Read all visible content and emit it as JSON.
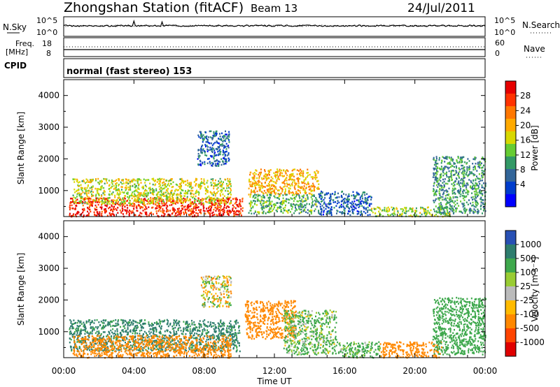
{
  "header": {
    "title": "Zhongshan Station (fitACF)",
    "beam": "Beam 13",
    "date": "24/Jul/2011"
  },
  "params_panel": {
    "nsky_label": "N.Sky",
    "nsky_ticks": [
      "10^5",
      "10^0"
    ],
    "nsearch_label": "N.Search",
    "nsearch_ticks": [
      "10^5",
      "10^0"
    ],
    "freq_label_1": "Freq.",
    "freq_label_2": "[MHz]",
    "freq_ticks": [
      "18",
      "8"
    ],
    "nave_label": "Nave",
    "nave_ticks": [
      "60",
      "0"
    ],
    "cpid_label": "CPID",
    "cpid_text": "normal (fast stereo) 153"
  },
  "power_panel": {
    "ylabel": "Slant Range [km]",
    "yticks": [
      "4000",
      "3000",
      "2000",
      "1000"
    ],
    "colorbar_label": "Power [dB]",
    "colorbar_ticks": [
      "28",
      "24",
      "20",
      "16",
      "12",
      "8",
      "4"
    ],
    "colorbar_colors": [
      "#e60000",
      "#ff3300",
      "#ff7700",
      "#ffaa00",
      "#d8d800",
      "#66cc33",
      "#339966",
      "#336699",
      "#003dcc",
      "#0000ff"
    ]
  },
  "velocity_panel": {
    "ylabel": "Slant Range [km]",
    "yticks": [
      "4000",
      "3000",
      "2000",
      "1000"
    ],
    "colorbar_label": "Velocity [m s⁻¹]",
    "colorbar_ticks": [
      "1000",
      "500",
      "100",
      "25",
      "-25",
      "-100",
      "-500",
      "-1000"
    ],
    "colorbar_colors": [
      "#2850b4",
      "#2e7d6e",
      "#3ea84c",
      "#99cc33",
      "#bbbbbb",
      "#ffbb00",
      "#ff8800",
      "#ff4400",
      "#e00000"
    ]
  },
  "xaxis": {
    "label": "Time UT",
    "ticks": [
      "00:00",
      "04:00",
      "08:00",
      "12:00",
      "16:00",
      "20:00",
      "00:00"
    ]
  },
  "chart_data": [
    {
      "type": "heatmap",
      "name": "power",
      "xlim": [
        0,
        24
      ],
      "ylim": [
        180,
        4500
      ],
      "colorbar_label": "Power [dB]",
      "regions": [
        {
          "x": [
            0.3,
            10.2
          ],
          "y": [
            200,
            800
          ],
          "value": 28
        },
        {
          "x": [
            0.5,
            9.5
          ],
          "y": [
            600,
            1400
          ],
          "value": 16
        },
        {
          "x": [
            10.5,
            14.5
          ],
          "y": [
            900,
            1700
          ],
          "value": 20
        },
        {
          "x": [
            10.5,
            14.5
          ],
          "y": [
            300,
            900
          ],
          "value": 12
        },
        {
          "x": [
            7.6,
            9.4
          ],
          "y": [
            1800,
            2900
          ],
          "value": 6
        },
        {
          "x": [
            14.5,
            17.5
          ],
          "y": [
            250,
            1000
          ],
          "value": 6
        },
        {
          "x": [
            17.5,
            22.0
          ],
          "y": [
            200,
            500
          ],
          "value": 14
        },
        {
          "x": [
            21.0,
            24.0
          ],
          "y": [
            300,
            2100
          ],
          "value": 10
        }
      ]
    },
    {
      "type": "heatmap",
      "name": "velocity",
      "xlim": [
        0,
        24
      ],
      "ylim": [
        180,
        4500
      ],
      "colorbar_label": "Velocity [m s⁻¹]",
      "regions": [
        {
          "x": [
            0.3,
            10.0
          ],
          "y": [
            400,
            1400
          ],
          "value": 600
        },
        {
          "x": [
            0.5,
            9.5
          ],
          "y": [
            200,
            900
          ],
          "value": -300
        },
        {
          "x": [
            10.3,
            13.2
          ],
          "y": [
            800,
            2000
          ],
          "value": -300
        },
        {
          "x": [
            12.5,
            15.5
          ],
          "y": [
            300,
            1700
          ],
          "value": 150
        },
        {
          "x": [
            7.8,
            9.5
          ],
          "y": [
            1800,
            2800
          ],
          "value": 0
        },
        {
          "x": [
            15.5,
            18.0
          ],
          "y": [
            200,
            700
          ],
          "value": 200
        },
        {
          "x": [
            18.0,
            21.5
          ],
          "y": [
            200,
            700
          ],
          "value": -300
        },
        {
          "x": [
            21.0,
            24.0
          ],
          "y": [
            300,
            2100
          ],
          "value": 300
        }
      ]
    }
  ]
}
